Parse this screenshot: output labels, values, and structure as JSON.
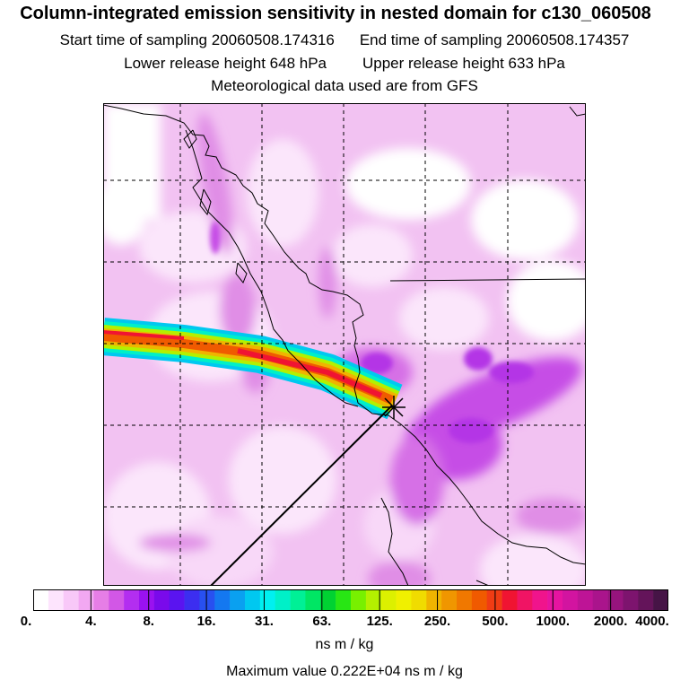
{
  "header": {
    "title": "Column-integrated emission sensitivity in nested domain for c130_060508",
    "start_label": "Start time of sampling 20060508.174316",
    "end_label": "End time of sampling 20060508.174357",
    "lower_label": "Lower release height  648 hPa",
    "upper_label": "Upper release height  633 hPa",
    "met_label": "Meteorological data used are from GFS"
  },
  "colorbar": {
    "units": "ns m / kg",
    "labels": [
      "0.",
      "4.",
      "8.",
      "16.",
      "31.",
      "63.",
      "125.",
      "250.",
      "500.",
      "1000.",
      "2000.",
      "4000."
    ],
    "colors": [
      "#ffffff",
      "#fde4fd",
      "#f8c8f8",
      "#f2a8f2",
      "#e67ee6",
      "#d257e6",
      "#b32ef0",
      "#9a12f0",
      "#7a0aeb",
      "#5a14f0",
      "#3c2ef0",
      "#2850f0",
      "#1478f0",
      "#0aa0f0",
      "#00c8f0",
      "#00f0f0",
      "#00f0c8",
      "#00f096",
      "#00e664",
      "#00d232",
      "#28e614",
      "#78f000",
      "#b4f000",
      "#dcf000",
      "#f0f000",
      "#f0dc00",
      "#f0b400",
      "#f09600",
      "#f07800",
      "#f05a00",
      "#f03c14",
      "#f01432",
      "#f01464",
      "#f0148c",
      "#e614a0",
      "#d214a0",
      "#be1496",
      "#aa148c",
      "#96147d",
      "#7d146e",
      "#64145a",
      "#461446"
    ]
  },
  "map": {
    "release_point": "release-point"
  },
  "footer": {
    "max_value": "Maximum value  0.222E+04 ns m / kg"
  }
}
